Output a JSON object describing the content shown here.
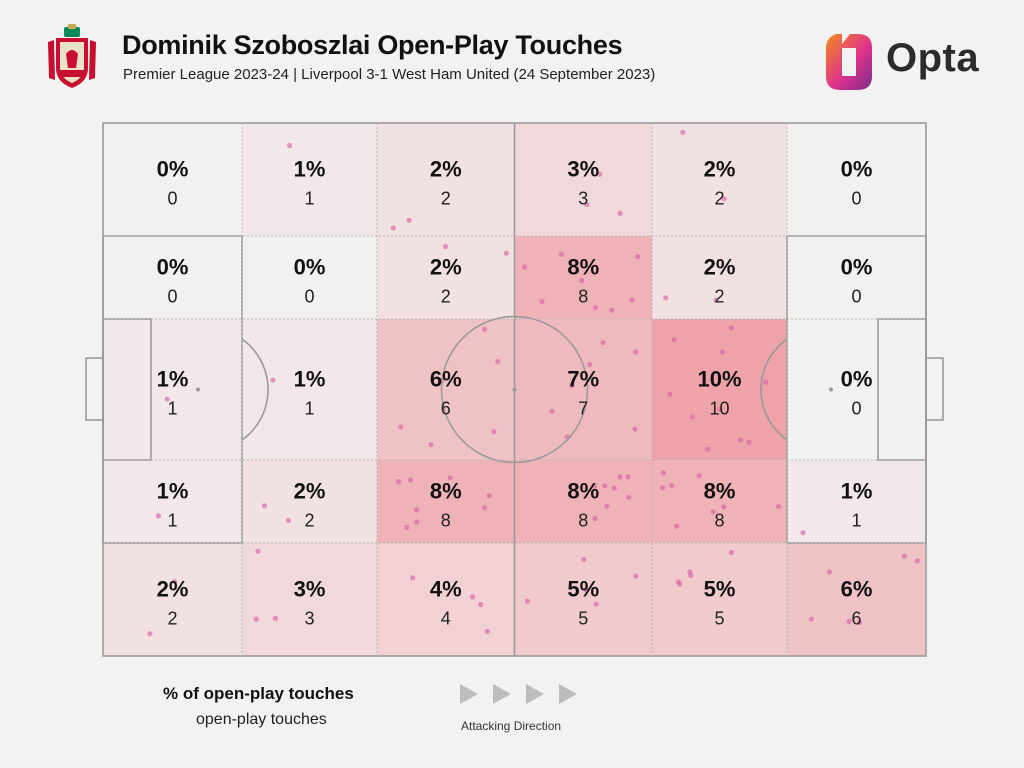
{
  "header": {
    "title": "Dominik Szoboszlai Open-Play Touches",
    "subtitle": "Premier League 2023-24 | Liverpool 3-1 West Ham United (24 September 2023)",
    "crest_icon": "liverpool-crest-icon",
    "brand_icon": "opta-logo-icon",
    "brand_text": "Opta"
  },
  "colors": {
    "background": "#f2f2f2",
    "pitch_lines": "#9a9a9a",
    "heat_low": "#f3f0f0",
    "heat_high": "#eda3a9",
    "dots": "#d964a6"
  },
  "chart_data": {
    "type": "heatmap",
    "rows": 5,
    "cols": 6,
    "attacking_direction": "left-to-right",
    "cells": [
      [
        {
          "pct": "0%",
          "count": 0
        },
        {
          "pct": "1%",
          "count": 1
        },
        {
          "pct": "2%",
          "count": 2
        },
        {
          "pct": "3%",
          "count": 3
        },
        {
          "pct": "2%",
          "count": 2
        },
        {
          "pct": "0%",
          "count": 0
        }
      ],
      [
        {
          "pct": "0%",
          "count": 0
        },
        {
          "pct": "0%",
          "count": 0
        },
        {
          "pct": "2%",
          "count": 2
        },
        {
          "pct": "8%",
          "count": 8
        },
        {
          "pct": "2%",
          "count": 2
        },
        {
          "pct": "0%",
          "count": 0
        }
      ],
      [
        {
          "pct": "1%",
          "count": 1
        },
        {
          "pct": "1%",
          "count": 1
        },
        {
          "pct": "6%",
          "count": 6
        },
        {
          "pct": "7%",
          "count": 7
        },
        {
          "pct": "10%",
          "count": 10
        },
        {
          "pct": "0%",
          "count": 0
        }
      ],
      [
        {
          "pct": "1%",
          "count": 1
        },
        {
          "pct": "2%",
          "count": 2
        },
        {
          "pct": "8%",
          "count": 8
        },
        {
          "pct": "8%",
          "count": 8
        },
        {
          "pct": "8%",
          "count": 8
        },
        {
          "pct": "1%",
          "count": 1
        }
      ],
      [
        {
          "pct": "2%",
          "count": 2
        },
        {
          "pct": "3%",
          "count": 3
        },
        {
          "pct": "4%",
          "count": 4
        },
        {
          "pct": "5%",
          "count": 5
        },
        {
          "pct": "5%",
          "count": 5
        },
        {
          "pct": "6%",
          "count": 6
        }
      ]
    ],
    "legend": {
      "label": "% of open-play touches",
      "sublabel": "open-play touches",
      "direction_label": "Attacking Direction",
      "direction_icon": "play-arrow-icon"
    }
  }
}
